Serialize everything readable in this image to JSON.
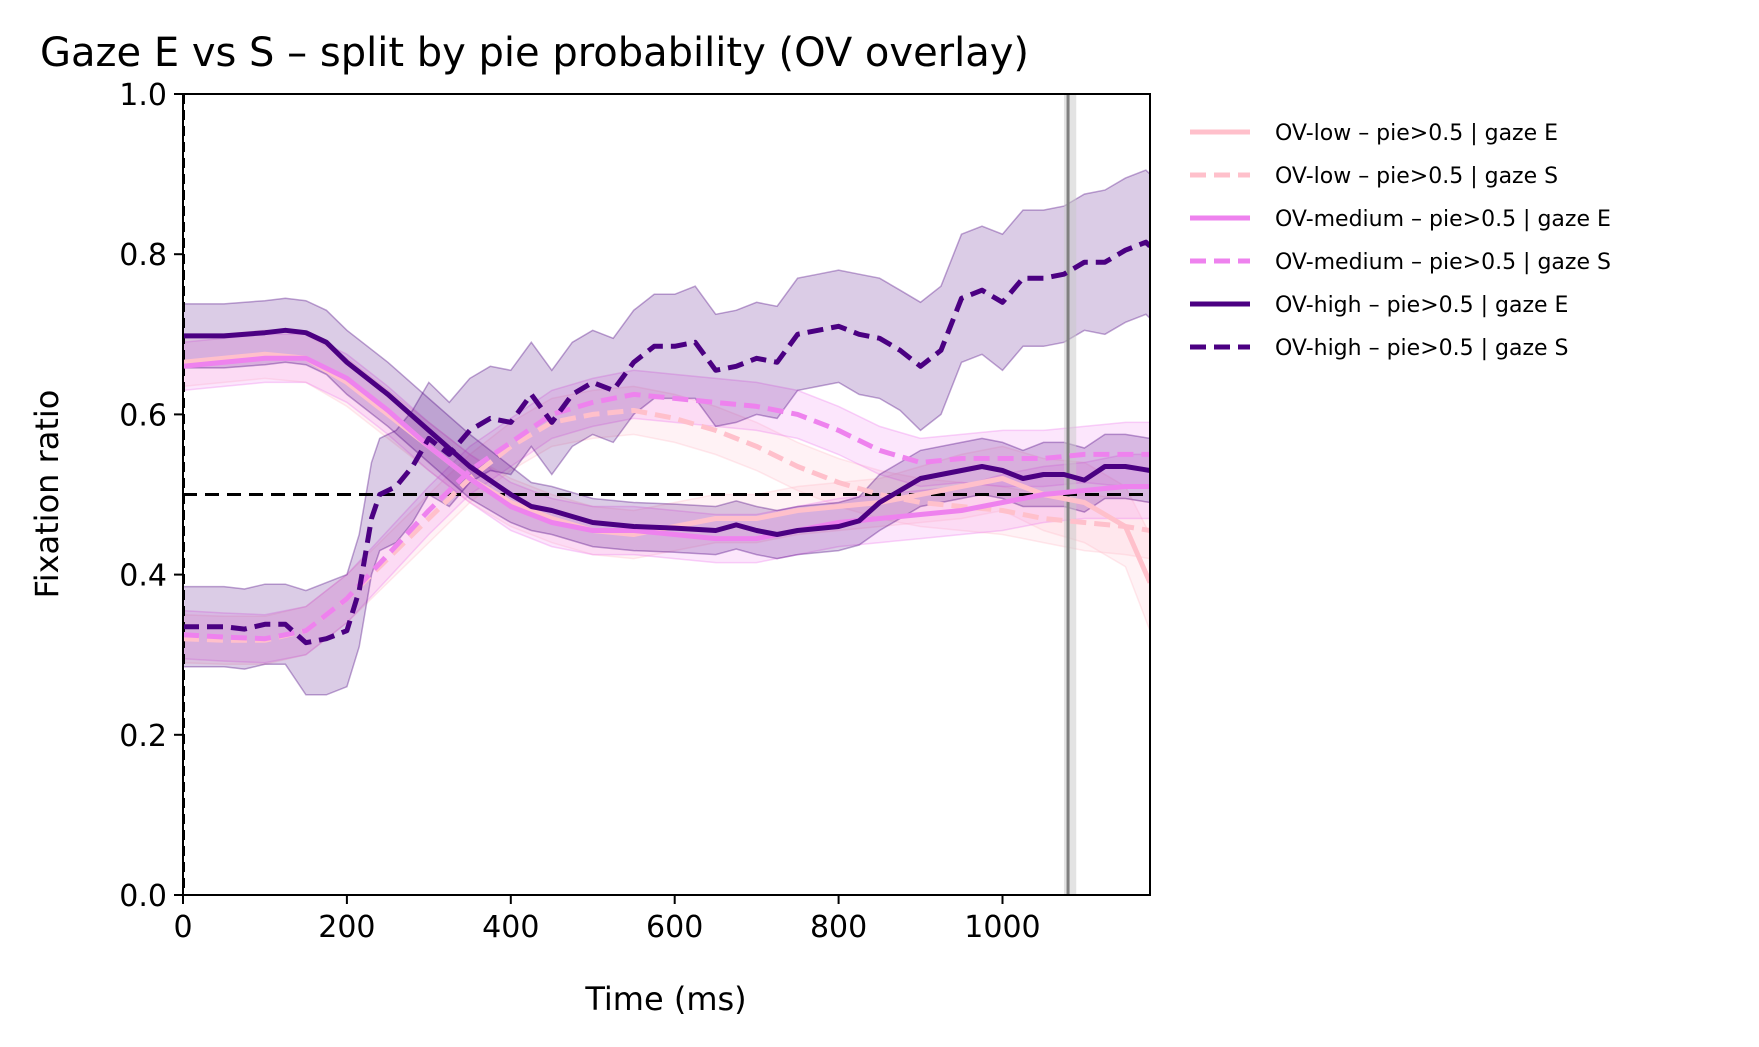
{
  "chart_data": {
    "type": "line",
    "title": "Gaze E vs S – split by pie probability (OV overlay)",
    "xlabel": "Time (ms)",
    "ylabel": "Fixation ratio",
    "xlim": [
      0,
      1180
    ],
    "ylim": [
      0.0,
      1.0
    ],
    "xticks": [
      0,
      200,
      400,
      600,
      800,
      1000
    ],
    "yticks": [
      0.0,
      0.2,
      0.4,
      0.6,
      0.8,
      1.0
    ],
    "xtick_labels": [
      "0",
      "200",
      "400",
      "600",
      "800",
      "1000"
    ],
    "ytick_labels": [
      "0.0",
      "0.2",
      "0.4",
      "0.6",
      "0.8",
      "1.0"
    ],
    "grid": false,
    "legend_position": "outside-right-top",
    "reference_lines": {
      "horizontal_y": 0.5,
      "vertical_x": 1080,
      "vertical_band": [
        1075,
        1090
      ]
    },
    "series": [
      {
        "name": "OV-low – pie>0.5 | gaze E",
        "color": "#FFC0CB",
        "dash": "solid",
        "x": [
          0,
          50,
          100,
          150,
          200,
          250,
          300,
          350,
          400,
          450,
          500,
          550,
          600,
          650,
          700,
          750,
          800,
          850,
          900,
          950,
          1000,
          1050,
          1100,
          1150,
          1180
        ],
        "y": [
          0.665,
          0.67,
          0.675,
          0.67,
          0.64,
          0.6,
          0.56,
          0.52,
          0.49,
          0.47,
          0.455,
          0.45,
          0.46,
          0.47,
          0.47,
          0.48,
          0.485,
          0.49,
          0.5,
          0.51,
          0.52,
          0.5,
          0.49,
          0.46,
          0.39
        ],
        "ci": [
          0.03,
          0.03,
          0.03,
          0.03,
          0.03,
          0.03,
          0.03,
          0.03,
          0.03,
          0.03,
          0.03,
          0.03,
          0.03,
          0.03,
          0.03,
          0.03,
          0.03,
          0.03,
          0.035,
          0.04,
          0.04,
          0.045,
          0.05,
          0.05,
          0.06
        ]
      },
      {
        "name": "OV-low – pie>0.5 | gaze S",
        "color": "#FFC0CB",
        "dash": "dashed",
        "x": [
          0,
          50,
          100,
          150,
          200,
          250,
          300,
          350,
          400,
          450,
          500,
          550,
          600,
          650,
          700,
          750,
          800,
          850,
          900,
          950,
          1000,
          1050,
          1100,
          1150,
          1180
        ],
        "y": [
          0.32,
          0.318,
          0.318,
          0.33,
          0.37,
          0.42,
          0.47,
          0.52,
          0.56,
          0.59,
          0.6,
          0.605,
          0.595,
          0.58,
          0.56,
          0.535,
          0.515,
          0.5,
          0.49,
          0.485,
          0.48,
          0.47,
          0.465,
          0.46,
          0.455
        ],
        "ci": [
          0.03,
          0.03,
          0.03,
          0.03,
          0.03,
          0.03,
          0.03,
          0.03,
          0.03,
          0.03,
          0.03,
          0.03,
          0.03,
          0.03,
          0.03,
          0.03,
          0.03,
          0.03,
          0.03,
          0.03,
          0.03,
          0.03,
          0.035,
          0.035,
          0.035
        ]
      },
      {
        "name": "OV-medium – pie>0.5 | gaze E",
        "color": "#EE82EE",
        "dash": "solid",
        "x": [
          0,
          50,
          100,
          150,
          200,
          250,
          300,
          350,
          400,
          450,
          500,
          550,
          600,
          650,
          700,
          750,
          800,
          850,
          900,
          950,
          1000,
          1050,
          1100,
          1150,
          1180
        ],
        "y": [
          0.66,
          0.665,
          0.67,
          0.67,
          0.645,
          0.605,
          0.56,
          0.52,
          0.485,
          0.465,
          0.455,
          0.455,
          0.45,
          0.445,
          0.445,
          0.455,
          0.465,
          0.47,
          0.475,
          0.48,
          0.49,
          0.5,
          0.505,
          0.51,
          0.51
        ],
        "ci": [
          0.03,
          0.03,
          0.03,
          0.03,
          0.03,
          0.03,
          0.03,
          0.03,
          0.03,
          0.03,
          0.03,
          0.03,
          0.03,
          0.03,
          0.03,
          0.03,
          0.03,
          0.03,
          0.03,
          0.03,
          0.035,
          0.035,
          0.035,
          0.04,
          0.04
        ]
      },
      {
        "name": "OV-medium – pie>0.5 | gaze S",
        "color": "#EE82EE",
        "dash": "dashed",
        "x": [
          0,
          50,
          100,
          150,
          200,
          250,
          300,
          350,
          400,
          450,
          500,
          550,
          600,
          650,
          700,
          750,
          800,
          850,
          900,
          950,
          1000,
          1050,
          1100,
          1150,
          1180
        ],
        "y": [
          0.325,
          0.322,
          0.32,
          0.33,
          0.37,
          0.425,
          0.48,
          0.53,
          0.565,
          0.6,
          0.615,
          0.625,
          0.62,
          0.615,
          0.61,
          0.6,
          0.58,
          0.555,
          0.54,
          0.545,
          0.545,
          0.545,
          0.55,
          0.55,
          0.55
        ],
        "ci": [
          0.03,
          0.03,
          0.03,
          0.03,
          0.03,
          0.03,
          0.03,
          0.03,
          0.03,
          0.03,
          0.03,
          0.03,
          0.03,
          0.03,
          0.03,
          0.03,
          0.03,
          0.03,
          0.03,
          0.03,
          0.035,
          0.035,
          0.035,
          0.04,
          0.04
        ]
      },
      {
        "name": "OV-high – pie>0.5 | gaze E",
        "color": "#4B0082",
        "dash": "solid",
        "x": [
          0,
          50,
          100,
          125,
          150,
          175,
          200,
          250,
          300,
          350,
          400,
          425,
          450,
          500,
          550,
          600,
          650,
          675,
          700,
          725,
          750,
          800,
          825,
          850,
          900,
          950,
          975,
          1000,
          1025,
          1050,
          1075,
          1100,
          1125,
          1150,
          1180
        ],
        "y": [
          0.698,
          0.698,
          0.702,
          0.705,
          0.702,
          0.69,
          0.665,
          0.625,
          0.58,
          0.535,
          0.5,
          0.485,
          0.48,
          0.465,
          0.46,
          0.458,
          0.455,
          0.462,
          0.455,
          0.45,
          0.455,
          0.46,
          0.467,
          0.49,
          0.52,
          0.53,
          0.535,
          0.53,
          0.52,
          0.525,
          0.525,
          0.518,
          0.535,
          0.535,
          0.53
        ],
        "ci": [
          0.04,
          0.04,
          0.04,
          0.04,
          0.04,
          0.04,
          0.04,
          0.04,
          0.04,
          0.04,
          0.035,
          0.03,
          0.03,
          0.03,
          0.03,
          0.03,
          0.03,
          0.03,
          0.03,
          0.03,
          0.03,
          0.03,
          0.03,
          0.035,
          0.035,
          0.035,
          0.035,
          0.035,
          0.035,
          0.04,
          0.04,
          0.04,
          0.04,
          0.04,
          0.04
        ]
      },
      {
        "name": "OV-high – pie>0.5 | gaze S",
        "color": "#4B0082",
        "dash": "dashed",
        "x": [
          0,
          50,
          75,
          100,
          125,
          150,
          175,
          200,
          215,
          230,
          240,
          260,
          280,
          300,
          325,
          350,
          375,
          400,
          425,
          450,
          475,
          500,
          525,
          550,
          575,
          600,
          625,
          650,
          675,
          700,
          725,
          750,
          775,
          800,
          825,
          850,
          875,
          900,
          925,
          950,
          975,
          1000,
          1025,
          1050,
          1075,
          1100,
          1125,
          1150,
          1175,
          1180
        ],
        "y": [
          0.335,
          0.335,
          0.332,
          0.338,
          0.338,
          0.315,
          0.32,
          0.33,
          0.38,
          0.47,
          0.5,
          0.51,
          0.535,
          0.57,
          0.55,
          0.58,
          0.595,
          0.59,
          0.625,
          0.59,
          0.625,
          0.64,
          0.63,
          0.665,
          0.685,
          0.685,
          0.69,
          0.655,
          0.66,
          0.67,
          0.665,
          0.7,
          0.705,
          0.71,
          0.7,
          0.695,
          0.68,
          0.66,
          0.68,
          0.745,
          0.755,
          0.74,
          0.77,
          0.77,
          0.775,
          0.79,
          0.79,
          0.805,
          0.815,
          0.81
        ],
        "ci": [
          0.05,
          0.05,
          0.05,
          0.05,
          0.05,
          0.065,
          0.07,
          0.07,
          0.07,
          0.07,
          0.07,
          0.07,
          0.07,
          0.07,
          0.065,
          0.065,
          0.065,
          0.065,
          0.065,
          0.065,
          0.065,
          0.065,
          0.065,
          0.065,
          0.065,
          0.065,
          0.07,
          0.07,
          0.07,
          0.07,
          0.07,
          0.07,
          0.07,
          0.07,
          0.075,
          0.075,
          0.075,
          0.08,
          0.08,
          0.08,
          0.08,
          0.085,
          0.085,
          0.085,
          0.085,
          0.085,
          0.09,
          0.09,
          0.09,
          0.09
        ]
      }
    ]
  }
}
